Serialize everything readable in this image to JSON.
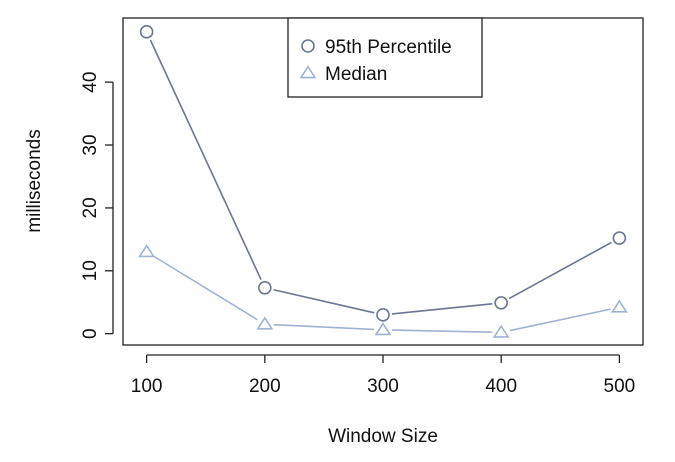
{
  "chart_data": {
    "type": "line",
    "title": "",
    "xlabel": "Window Size",
    "ylabel": "milliseconds",
    "x": [
      100,
      200,
      300,
      400,
      500
    ],
    "xlim": [
      80,
      520
    ],
    "ylim": [
      -1.8,
      50.2
    ],
    "xticks": [
      100,
      200,
      300,
      400,
      500
    ],
    "yticks": [
      0,
      10,
      20,
      30,
      40
    ],
    "grid": false,
    "legend_position": "top-center",
    "series": [
      {
        "name": "95th Percentile",
        "marker": "circle",
        "color": "#6b7590",
        "values": [
          48.0,
          7.3,
          3.0,
          4.9,
          15.2
        ]
      },
      {
        "name": "Median",
        "marker": "triangle",
        "color": "#9fb2d2",
        "values": [
          13.0,
          1.5,
          0.6,
          0.2,
          4.2
        ]
      }
    ]
  }
}
